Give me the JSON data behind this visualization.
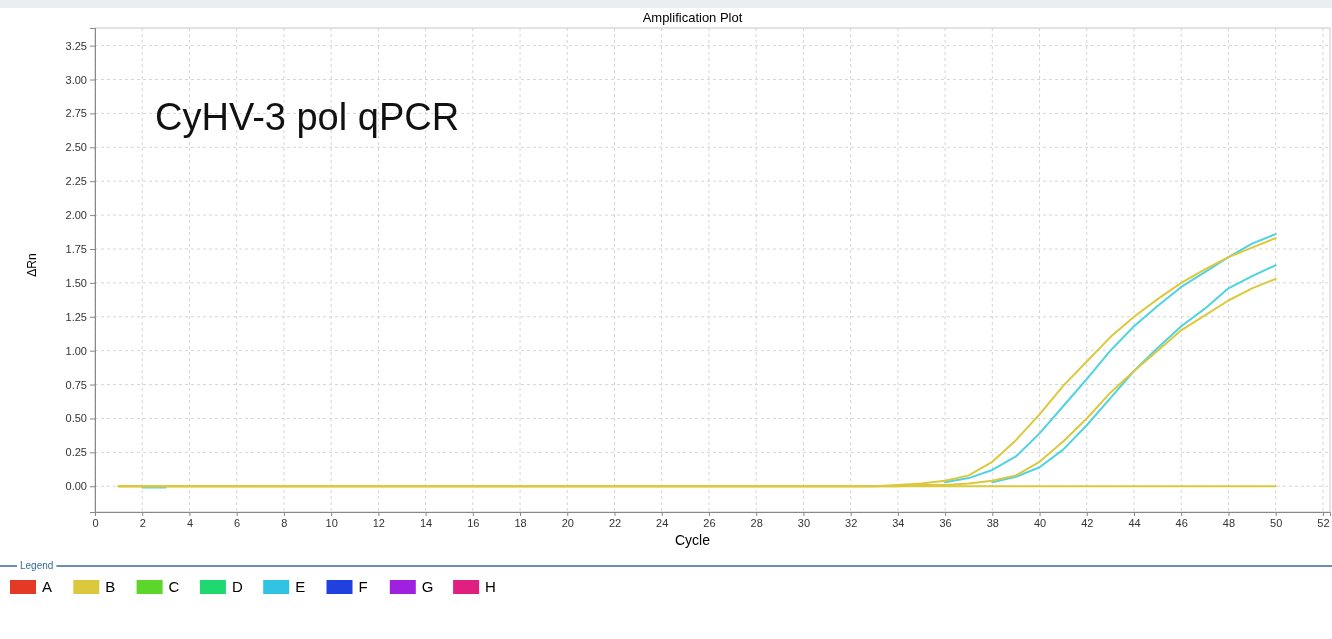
{
  "chart_data": {
    "type": "line",
    "title": "Amplification Plot",
    "xlabel": "Cycle",
    "ylabel": "ΔRn",
    "legend_title": "Legend",
    "annotations": [
      "CyHV-3 pol qPCR"
    ],
    "x": [
      1,
      2,
      3,
      4,
      5,
      6,
      7,
      8,
      9,
      10,
      11,
      12,
      13,
      14,
      15,
      16,
      17,
      18,
      19,
      20,
      21,
      22,
      23,
      24,
      25,
      26,
      27,
      28,
      29,
      30,
      31,
      32,
      33,
      34,
      35,
      36,
      37,
      38,
      39,
      40,
      41,
      42,
      43,
      44,
      45,
      46,
      47,
      48,
      49,
      50
    ],
    "xlim": [
      0,
      52.3
    ],
    "xticks": [
      0,
      2,
      4,
      6,
      8,
      10,
      12,
      14,
      16,
      18,
      20,
      22,
      24,
      26,
      28,
      30,
      32,
      34,
      36,
      38,
      40,
      42,
      44,
      46,
      48,
      50,
      52
    ],
    "ylim": [
      -0.19,
      3.38
    ],
    "yticks": [
      {
        "value": 0,
        "label": "0.00"
      },
      {
        "value": 0.25,
        "label": "0.25"
      },
      {
        "value": 0.5,
        "label": "0.50"
      },
      {
        "value": 0.75,
        "label": "0.75"
      },
      {
        "value": 1,
        "label": "1.00"
      },
      {
        "value": 1.25,
        "label": "1.25"
      },
      {
        "value": 1.5,
        "label": "1.50"
      },
      {
        "value": 1.75,
        "label": "1.75"
      },
      {
        "value": 2,
        "label": "2.00"
      },
      {
        "value": 2.25,
        "label": "2.25"
      },
      {
        "value": 2.5,
        "label": "2.50"
      },
      {
        "value": 2.75,
        "label": "2.75"
      },
      {
        "value": 3,
        "label": "3.00"
      },
      {
        "value": 3.25,
        "label": "3.25"
      }
    ],
    "grid": true,
    "legend": "bottom",
    "line_style": "solid",
    "marker": "none",
    "series": [
      {
        "name": "A",
        "color": "#e23a24",
        "values": [
          null,
          null,
          null,
          null,
          null,
          null,
          null,
          null,
          null,
          null,
          null,
          null,
          null,
          null,
          null,
          null,
          null,
          null,
          null,
          null,
          null,
          null,
          null,
          null,
          null,
          null,
          null,
          null,
          null,
          null,
          null,
          null,
          null,
          null,
          null,
          null,
          null,
          null,
          null,
          null,
          null,
          null,
          null,
          null,
          null,
          null,
          null,
          null,
          null,
          null
        ]
      },
      {
        "color": "#4fd3e0",
        "values": [
          null,
          -0.01,
          -0.01,
          null,
          null,
          null,
          null,
          null,
          null,
          null,
          null,
          null,
          null,
          null,
          null,
          null,
          null,
          null,
          null,
          null,
          null,
          null,
          null,
          null,
          null,
          null,
          null,
          null,
          null,
          null,
          null,
          null,
          null,
          null,
          null,
          0.03,
          0.06,
          0.12,
          0.22,
          0.39,
          0.59,
          0.79,
          1.0,
          1.18,
          1.33,
          1.47,
          1.58,
          1.69,
          1.79,
          1.86
        ]
      },
      {
        "color": "#4fd3e0",
        "values": [
          null,
          null,
          null,
          null,
          null,
          null,
          null,
          null,
          null,
          null,
          null,
          null,
          null,
          null,
          null,
          null,
          null,
          null,
          null,
          null,
          null,
          null,
          null,
          null,
          null,
          null,
          null,
          null,
          null,
          null,
          null,
          null,
          null,
          null,
          null,
          null,
          null,
          0.03,
          0.07,
          0.14,
          0.27,
          0.45,
          0.65,
          0.85,
          1.02,
          1.18,
          1.31,
          1.46,
          1.55,
          1.63
        ]
      },
      {
        "color": "#dcc83c",
        "values": [
          0,
          0,
          0,
          0,
          0,
          0,
          0,
          0,
          0,
          0,
          0,
          0,
          0,
          0,
          0,
          0,
          0,
          0,
          0,
          0,
          0,
          0,
          0,
          0,
          0,
          0,
          0,
          0,
          0,
          0,
          0,
          0,
          0,
          0.01,
          0.02,
          0.04,
          0.08,
          0.18,
          0.34,
          0.53,
          0.74,
          0.92,
          1.1,
          1.25,
          1.38,
          1.5,
          1.6,
          1.69,
          1.76,
          1.83
        ]
      },
      {
        "color": "#dcc83c",
        "values": [
          0,
          0,
          0,
          0,
          0,
          0,
          0,
          0,
          0,
          0,
          0,
          0,
          0,
          0,
          0,
          0,
          0,
          0,
          0,
          0,
          0,
          0,
          0,
          0,
          0,
          0,
          0,
          0,
          0,
          0,
          0,
          0,
          0,
          0,
          0.01,
          0.01,
          0.02,
          0.04,
          0.08,
          0.18,
          0.33,
          0.5,
          0.69,
          0.85,
          1.0,
          1.15,
          1.26,
          1.37,
          1.46,
          1.53
        ]
      },
      {
        "name": "B",
        "color": "#dcc83c",
        "values": [
          0,
          0,
          0,
          0,
          0,
          0,
          0,
          0,
          0,
          0,
          0,
          0,
          0,
          0,
          0,
          0,
          0,
          0,
          0,
          0,
          0,
          0,
          0,
          0,
          0,
          0,
          0,
          0,
          0,
          0,
          0,
          0,
          0,
          0,
          0,
          0,
          0,
          0,
          0,
          0,
          0,
          0,
          0,
          0,
          0,
          0,
          0,
          0,
          0,
          0
        ]
      },
      {
        "name": "C",
        "color": "#5cd62a",
        "values": [
          null,
          null,
          null,
          null,
          null,
          null,
          null,
          null,
          null,
          null,
          null,
          null,
          null,
          null,
          null,
          null,
          null,
          null,
          null,
          null,
          null,
          null,
          null,
          null,
          null,
          null,
          null,
          null,
          null,
          null,
          null,
          null,
          null,
          null,
          null,
          null,
          null,
          null,
          null,
          null,
          null,
          null,
          null,
          null,
          null,
          null,
          null,
          null,
          null,
          null
        ]
      },
      {
        "name": "D",
        "color": "#20d870",
        "values": [
          null,
          null,
          null,
          null,
          null,
          null,
          null,
          null,
          null,
          null,
          null,
          null,
          null,
          null,
          null,
          null,
          null,
          null,
          null,
          null,
          null,
          null,
          null,
          null,
          null,
          null,
          null,
          null,
          null,
          null,
          null,
          null,
          null,
          null,
          null,
          null,
          null,
          null,
          null,
          null,
          null,
          null,
          null,
          null,
          null,
          null,
          null,
          null,
          null,
          null
        ]
      },
      {
        "name": "E",
        "color": "#30c4e2",
        "values": [
          null,
          null,
          null,
          null,
          null,
          null,
          null,
          null,
          null,
          null,
          null,
          null,
          null,
          null,
          null,
          null,
          null,
          null,
          null,
          null,
          null,
          null,
          null,
          null,
          null,
          null,
          null,
          null,
          null,
          null,
          null,
          null,
          null,
          null,
          null,
          null,
          null,
          null,
          null,
          null,
          null,
          null,
          null,
          null,
          null,
          null,
          null,
          null,
          null,
          null
        ]
      },
      {
        "name": "F",
        "color": "#2040e0",
        "values": [
          null,
          null,
          null,
          null,
          null,
          null,
          null,
          null,
          null,
          null,
          null,
          null,
          null,
          null,
          null,
          null,
          null,
          null,
          null,
          null,
          null,
          null,
          null,
          null,
          null,
          null,
          null,
          null,
          null,
          null,
          null,
          null,
          null,
          null,
          null,
          null,
          null,
          null,
          null,
          null,
          null,
          null,
          null,
          null,
          null,
          null,
          null,
          null,
          null,
          null
        ]
      },
      {
        "name": "G",
        "color": "#a020e0",
        "values": [
          null,
          null,
          null,
          null,
          null,
          null,
          null,
          null,
          null,
          null,
          null,
          null,
          null,
          null,
          null,
          null,
          null,
          null,
          null,
          null,
          null,
          null,
          null,
          null,
          null,
          null,
          null,
          null,
          null,
          null,
          null,
          null,
          null,
          null,
          null,
          null,
          null,
          null,
          null,
          null,
          null,
          null,
          null,
          null,
          null,
          null,
          null,
          null,
          null,
          null
        ]
      },
      {
        "name": "H",
        "color": "#e02080",
        "values": [
          null,
          null,
          null,
          null,
          null,
          null,
          null,
          null,
          null,
          null,
          null,
          null,
          null,
          null,
          null,
          null,
          null,
          null,
          null,
          null,
          null,
          null,
          null,
          null,
          null,
          null,
          null,
          null,
          null,
          null,
          null,
          null,
          null,
          null,
          null,
          null,
          null,
          null,
          null,
          null,
          null,
          null,
          null,
          null,
          null,
          null,
          null,
          null,
          null,
          null
        ]
      }
    ]
  }
}
